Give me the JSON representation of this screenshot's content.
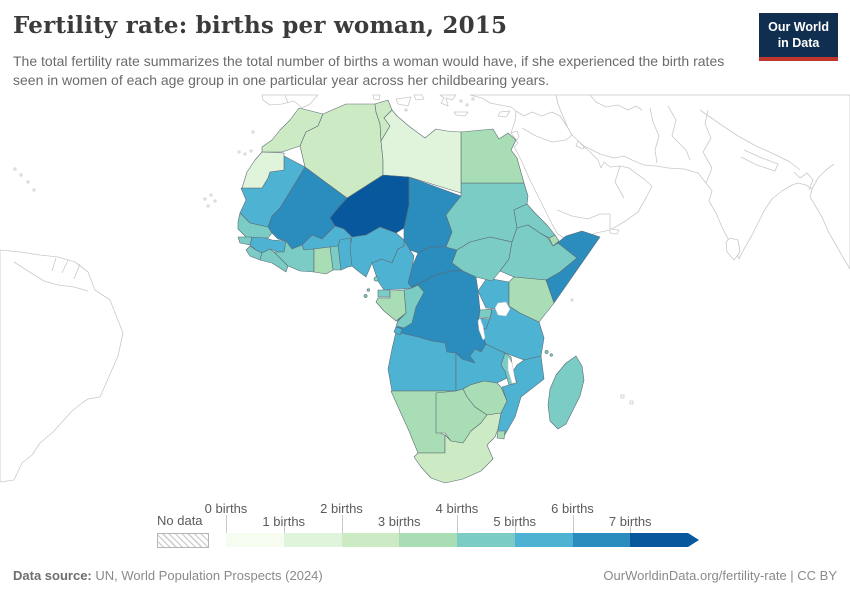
{
  "header": {
    "title": "Fertility rate: births per woman, 2015",
    "subtitle": "The total fertility rate summarizes the total number of births a woman would have, if she experienced the birth rates seen in women of each age group in one particular year across her childbearing years.",
    "logo_line1": "Our World",
    "logo_line2": "in Data",
    "logo_bg": "#102e4f",
    "logo_accent": "#c0362e"
  },
  "legend": {
    "no_data_label": "No data",
    "tick_labels": [
      "0 births",
      "1 births",
      "2 births",
      "3 births",
      "4 births",
      "5 births",
      "6 births",
      "7 births"
    ],
    "bin_colors": [
      "#f7fcf0",
      "#e0f3db",
      "#ccebc5",
      "#a8ddb5",
      "#7bccc4",
      "#4eb3d3",
      "#2b8cbe",
      "#08589e"
    ]
  },
  "footer": {
    "source_label": "Data source:",
    "source_text": " UN, World Population Prospects (2024)",
    "right_text": "OurWorldinData.org/fertility-rate | CC BY"
  },
  "chart_data": {
    "type": "heatmap",
    "subtype": "choropleth-world-map",
    "title": "Fertility rate: births per woman, 2015",
    "unit": "births per woman",
    "year": "2015",
    "region_focus": "Africa (surrounding continents shown as no-data outlines)",
    "legend_bins": [
      "0-1",
      "1-2",
      "2-3",
      "3-4",
      "4-5",
      "5-6",
      "6-7",
      "7+"
    ],
    "countries": [
      {
        "key": "niger",
        "name": "Niger",
        "bin": "7+ births",
        "color": "#08589e"
      },
      {
        "key": "mali",
        "name": "Mali",
        "bin": "6-7 births",
        "color": "#2b8cbe"
      },
      {
        "key": "chad",
        "name": "Chad",
        "bin": "6-7 births",
        "color": "#2b8cbe"
      },
      {
        "key": "car",
        "name": "Central African Republic",
        "bin": "6-7 births",
        "color": "#2b8cbe"
      },
      {
        "key": "drc",
        "name": "Democratic Republic of Congo",
        "bin": "6-7 births",
        "color": "#2b8cbe"
      },
      {
        "key": "somalia",
        "name": "Somalia",
        "bin": "6-7 births",
        "color": "#2b8cbe"
      },
      {
        "key": "mauritania",
        "name": "Mauritania",
        "bin": "5-6 births",
        "color": "#4eb3d3"
      },
      {
        "key": "gambia",
        "name": "Gambia",
        "bin": "5-6 births",
        "color": "#4eb3d3"
      },
      {
        "key": "guinea",
        "name": "Guinea",
        "bin": "5-6 births",
        "color": "#4eb3d3"
      },
      {
        "key": "burkina-faso",
        "name": "Burkina Faso",
        "bin": "5-6 births",
        "color": "#4eb3d3"
      },
      {
        "key": "benin",
        "name": "Benin",
        "bin": "5-6 births",
        "color": "#4eb3d3"
      },
      {
        "key": "nigeria",
        "name": "Nigeria",
        "bin": "5-6 births",
        "color": "#4eb3d3"
      },
      {
        "key": "cameroon",
        "name": "Cameroon",
        "bin": "5-6 births",
        "color": "#4eb3d3"
      },
      {
        "key": "uganda",
        "name": "Uganda",
        "bin": "5-6 births",
        "color": "#4eb3d3"
      },
      {
        "key": "burundi",
        "name": "Burundi",
        "bin": "5-6 births",
        "color": "#4eb3d3"
      },
      {
        "key": "tanzania",
        "name": "Tanzania",
        "bin": "5-6 births",
        "color": "#4eb3d3"
      },
      {
        "key": "angola",
        "name": "Angola",
        "bin": "5-6 births",
        "color": "#4eb3d3"
      },
      {
        "key": "cabinda",
        "name": "Angola (Cabinda)",
        "bin": "5-6 births",
        "color": "#4eb3d3"
      },
      {
        "key": "zambia",
        "name": "Zambia",
        "bin": "5-6 births",
        "color": "#4eb3d3"
      },
      {
        "key": "mozambique",
        "name": "Mozambique",
        "bin": "5-6 births",
        "color": "#4eb3d3"
      },
      {
        "key": "senegal",
        "name": "Senegal",
        "bin": "4-5 births",
        "color": "#7bccc4"
      },
      {
        "key": "guinea-bissau",
        "name": "Guinea-Bissau",
        "bin": "4-5 births",
        "color": "#7bccc4"
      },
      {
        "key": "sierra-leone",
        "name": "Sierra Leone",
        "bin": "4-5 births",
        "color": "#7bccc4"
      },
      {
        "key": "liberia",
        "name": "Liberia",
        "bin": "4-5 births",
        "color": "#7bccc4"
      },
      {
        "key": "cote-divoire",
        "name": "Cote d'Ivoire",
        "bin": "4-5 births",
        "color": "#7bccc4"
      },
      {
        "key": "togo",
        "name": "Togo",
        "bin": "4-5 births",
        "color": "#7bccc4"
      },
      {
        "key": "sudan",
        "name": "Sudan",
        "bin": "4-5 births",
        "color": "#7bccc4"
      },
      {
        "key": "south-sudan",
        "name": "South Sudan",
        "bin": "4-5 births",
        "color": "#7bccc4"
      },
      {
        "key": "eritrea",
        "name": "Eritrea",
        "bin": "4-5 births",
        "color": "#7bccc4"
      },
      {
        "key": "ethiopia",
        "name": "Ethiopia",
        "bin": "4-5 births",
        "color": "#7bccc4"
      },
      {
        "key": "rwanda",
        "name": "Rwanda",
        "bin": "4-5 births",
        "color": "#7bccc4"
      },
      {
        "key": "congo",
        "name": "Congo",
        "bin": "4-5 births",
        "color": "#7bccc4"
      },
      {
        "key": "eq-guinea",
        "name": "Equatorial Guinea",
        "bin": "4-5 births",
        "color": "#7bccc4"
      },
      {
        "key": "malawi",
        "name": "Malawi",
        "bin": "4-5 births",
        "color": "#7bccc4"
      },
      {
        "key": "madagascar",
        "name": "Madagascar",
        "bin": "4-5 births",
        "color": "#7bccc4"
      },
      {
        "key": "comoros",
        "name": "Comoros",
        "bin": "4-5 births",
        "color": "#7bccc4"
      },
      {
        "key": "sao-tome",
        "name": "Sao Tome and Principe",
        "bin": "4-5 births",
        "color": "#7bccc4"
      },
      {
        "key": "egypt",
        "name": "Egypt",
        "bin": "3-4 births",
        "color": "#a8ddb5"
      },
      {
        "key": "ghana",
        "name": "Ghana",
        "bin": "3-4 births",
        "color": "#a8ddb5"
      },
      {
        "key": "kenya",
        "name": "Kenya",
        "bin": "3-4 births",
        "color": "#a8ddb5"
      },
      {
        "key": "gabon",
        "name": "Gabon",
        "bin": "3-4 births",
        "color": "#a8ddb5"
      },
      {
        "key": "zimbabwe",
        "name": "Zimbabwe",
        "bin": "3-4 births",
        "color": "#a8ddb5"
      },
      {
        "key": "namibia",
        "name": "Namibia",
        "bin": "3-4 births",
        "color": "#a8ddb5"
      },
      {
        "key": "botswana",
        "name": "Botswana",
        "bin": "3-4 births",
        "color": "#a8ddb5"
      },
      {
        "key": "lesotho",
        "name": "Lesotho",
        "bin": "3-4 births",
        "color": "#a8ddb5"
      },
      {
        "key": "eswatini",
        "name": "Eswatini",
        "bin": "3-4 births",
        "color": "#a8ddb5"
      },
      {
        "key": "djibouti",
        "name": "Djibouti",
        "bin": "3-4 births",
        "color": "#a8ddb5"
      },
      {
        "key": "morocco",
        "name": "Morocco",
        "bin": "2-3 births",
        "color": "#ccebc5"
      },
      {
        "key": "algeria",
        "name": "Algeria",
        "bin": "2-3 births",
        "color": "#ccebc5"
      },
      {
        "key": "tunisia",
        "name": "Tunisia",
        "bin": "2-3 births",
        "color": "#ccebc5"
      },
      {
        "key": "south-africa",
        "name": "South Africa",
        "bin": "2-3 births",
        "color": "#ccebc5"
      },
      {
        "key": "libya",
        "name": "Libya",
        "bin": "1-2 births",
        "color": "#e0f3db"
      },
      {
        "key": "western-sahara",
        "name": "Western Sahara",
        "bin": "1-2 births",
        "color": "#e0f3db"
      }
    ]
  }
}
